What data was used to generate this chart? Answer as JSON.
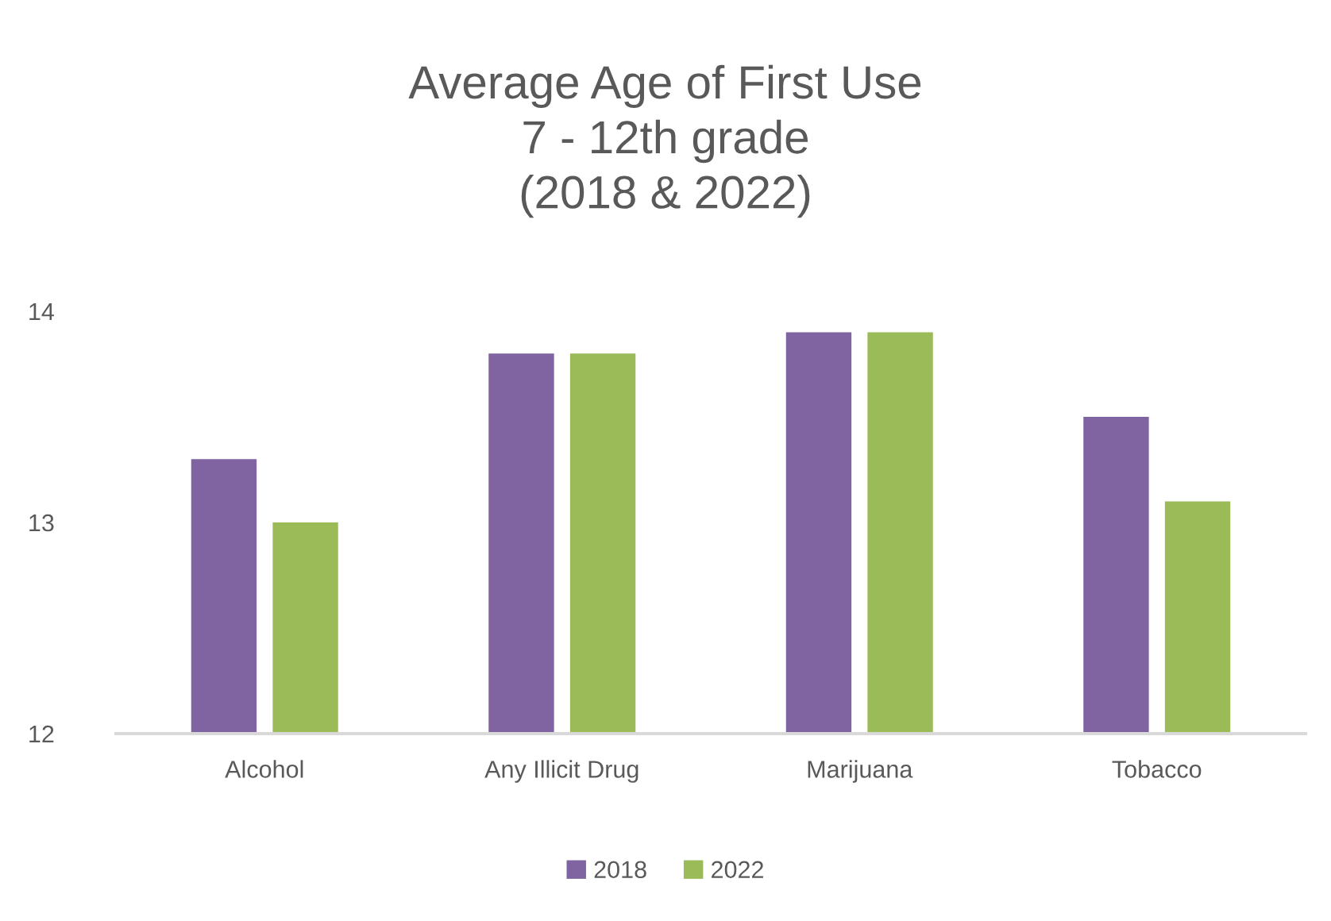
{
  "chart_data": {
    "type": "bar",
    "title": "Average Age of First Use\n7 - 12th grade\n(2018 & 2022)",
    "categories": [
      "Alcohol",
      "Any Illicit Drug",
      "Marijuana",
      "Tobacco"
    ],
    "series": [
      {
        "name": "2018",
        "color": "#8064a2",
        "values": [
          13.3,
          13.8,
          13.9,
          13.5
        ]
      },
      {
        "name": "2022",
        "color": "#9bbb59",
        "values": [
          13.0,
          13.8,
          13.9,
          13.1
        ]
      }
    ],
    "ylim": [
      12,
      14
    ],
    "yticks": [
      12,
      13,
      14
    ],
    "grid": false,
    "legend": "bottom"
  }
}
